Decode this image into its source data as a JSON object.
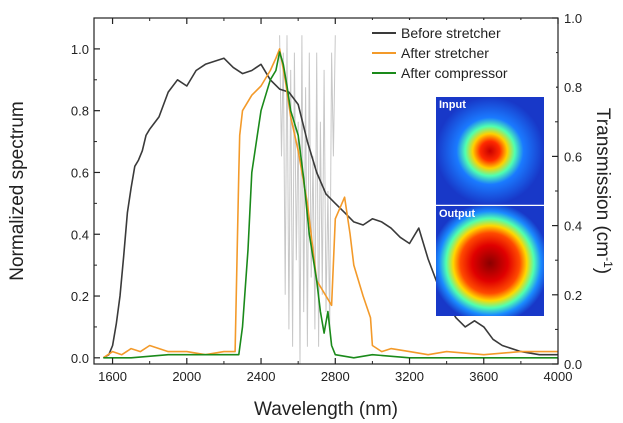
{
  "chart_data": {
    "type": "line",
    "xlabel": "Wavelength (nm)",
    "ylabel_left": "Normalized spectrum",
    "ylabel_right": "Transmission (cm",
    "ylabel_right_sup": "-1",
    "ylabel_right_suffix": ")",
    "xlim": [
      1500,
      4000
    ],
    "ylim_left": [
      -0.02,
      1.1
    ],
    "ylim_right": [
      0.0,
      1.0
    ],
    "x_ticks": [
      1600,
      2000,
      2400,
      2800,
      3200,
      3600,
      4000
    ],
    "x_tick_labels": [
      "1600",
      "2000",
      "2400",
      "2800",
      "3200",
      "3600",
      "4000"
    ],
    "y_left_ticks": [
      0.0,
      0.2,
      0.4,
      0.6,
      0.8,
      1.0
    ],
    "y_left_tick_labels": [
      "0.0",
      "0.2",
      "0.4",
      "0.6",
      "0.8",
      "1.0"
    ],
    "y_right_ticks": [
      0.0,
      0.2,
      0.4,
      0.6,
      0.8,
      1.0
    ],
    "y_right_tick_labels": [
      "0.0",
      "0.2",
      "0.4",
      "0.6",
      "0.8",
      "1.0"
    ],
    "legend_position": "top-right",
    "colors": {
      "before": "#3a3a3a",
      "after_stretcher": "#f39a2a",
      "after_compressor": "#1a8a1a",
      "transmission": "#c8c8c8"
    },
    "series": [
      {
        "name": "Before stretcher",
        "x": [
          1550,
          1580,
          1600,
          1620,
          1640,
          1660,
          1680,
          1700,
          1720,
          1740,
          1760,
          1780,
          1800,
          1850,
          1900,
          1950,
          2000,
          2050,
          2100,
          2150,
          2200,
          2250,
          2300,
          2350,
          2400,
          2450,
          2500,
          2550,
          2600,
          2650,
          2700,
          2750,
          2800,
          2850,
          2900,
          2950,
          3000,
          3050,
          3100,
          3150,
          3200,
          3250,
          3300,
          3350,
          3400,
          3450,
          3500,
          3550,
          3600,
          3650,
          3700,
          3800,
          3900,
          4000
        ],
        "y": [
          0.0,
          0.01,
          0.04,
          0.11,
          0.2,
          0.33,
          0.47,
          0.55,
          0.62,
          0.64,
          0.67,
          0.72,
          0.74,
          0.78,
          0.86,
          0.9,
          0.88,
          0.93,
          0.95,
          0.96,
          0.97,
          0.94,
          0.92,
          0.93,
          0.95,
          0.9,
          0.87,
          0.86,
          0.82,
          0.7,
          0.6,
          0.53,
          0.5,
          0.47,
          0.44,
          0.43,
          0.45,
          0.44,
          0.42,
          0.39,
          0.37,
          0.42,
          0.32,
          0.24,
          0.18,
          0.13,
          0.1,
          0.12,
          0.1,
          0.06,
          0.04,
          0.02,
          0.01,
          0.01
        ]
      },
      {
        "name": "After stretcher",
        "x": [
          1550,
          1600,
          1650,
          1700,
          1750,
          1800,
          1900,
          2000,
          2100,
          2200,
          2260,
          2280,
          2285,
          2300,
          2350,
          2400,
          2450,
          2480,
          2500,
          2530,
          2560,
          2600,
          2650,
          2700,
          2750,
          2780,
          2800,
          2850,
          2880,
          2900,
          2950,
          2990,
          3000,
          3050,
          3100,
          3200,
          3300,
          3400,
          3600,
          3800,
          4000
        ],
        "y": [
          0.0,
          0.02,
          0.01,
          0.03,
          0.02,
          0.04,
          0.02,
          0.02,
          0.01,
          0.02,
          0.02,
          0.6,
          0.72,
          0.8,
          0.85,
          0.88,
          0.93,
          0.97,
          1.0,
          0.9,
          0.78,
          0.67,
          0.5,
          0.25,
          0.2,
          0.17,
          0.45,
          0.52,
          0.4,
          0.3,
          0.2,
          0.13,
          0.04,
          0.02,
          0.03,
          0.02,
          0.01,
          0.02,
          0.01,
          0.02,
          0.02
        ]
      },
      {
        "name": "After compressor",
        "x": [
          1550,
          1700,
          1900,
          2100,
          2250,
          2280,
          2300,
          2330,
          2350,
          2380,
          2400,
          2450,
          2480,
          2500,
          2520,
          2540,
          2560,
          2600,
          2630,
          2660,
          2700,
          2720,
          2740,
          2760,
          2780,
          2800,
          2900,
          3000,
          3200,
          3500,
          4000
        ],
        "y": [
          0.0,
          0.0,
          0.01,
          0.01,
          0.01,
          0.01,
          0.1,
          0.35,
          0.6,
          0.72,
          0.8,
          0.9,
          0.93,
          0.99,
          0.95,
          0.88,
          0.8,
          0.72,
          0.58,
          0.4,
          0.25,
          0.15,
          0.08,
          0.15,
          0.04,
          0.01,
          0.0,
          0.01,
          0.0,
          0.0,
          0.0
        ]
      }
    ],
    "transmission": {
      "axis": "right",
      "x": [
        2500,
        2510,
        2520,
        2530,
        2540,
        2550,
        2560,
        2570,
        2580,
        2590,
        2600,
        2610,
        2620,
        2630,
        2640,
        2650,
        2660,
        2670,
        2680,
        2690,
        2700,
        2710,
        2720,
        2730,
        2740,
        2750,
        2760,
        2770,
        2780,
        2790,
        2800
      ],
      "y": [
        0.95,
        0.6,
        0.9,
        0.2,
        0.95,
        0.1,
        0.85,
        0.05,
        0.9,
        0.3,
        0.7,
        0.0,
        0.95,
        0.15,
        0.8,
        0.05,
        0.9,
        0.25,
        0.6,
        0.1,
        0.9,
        0.05,
        0.7,
        0.2,
        0.85,
        0.15,
        0.5,
        0.1,
        0.9,
        0.6,
        0.95
      ]
    },
    "inset": {
      "top_label": "Input",
      "bottom_label": "Output"
    }
  }
}
